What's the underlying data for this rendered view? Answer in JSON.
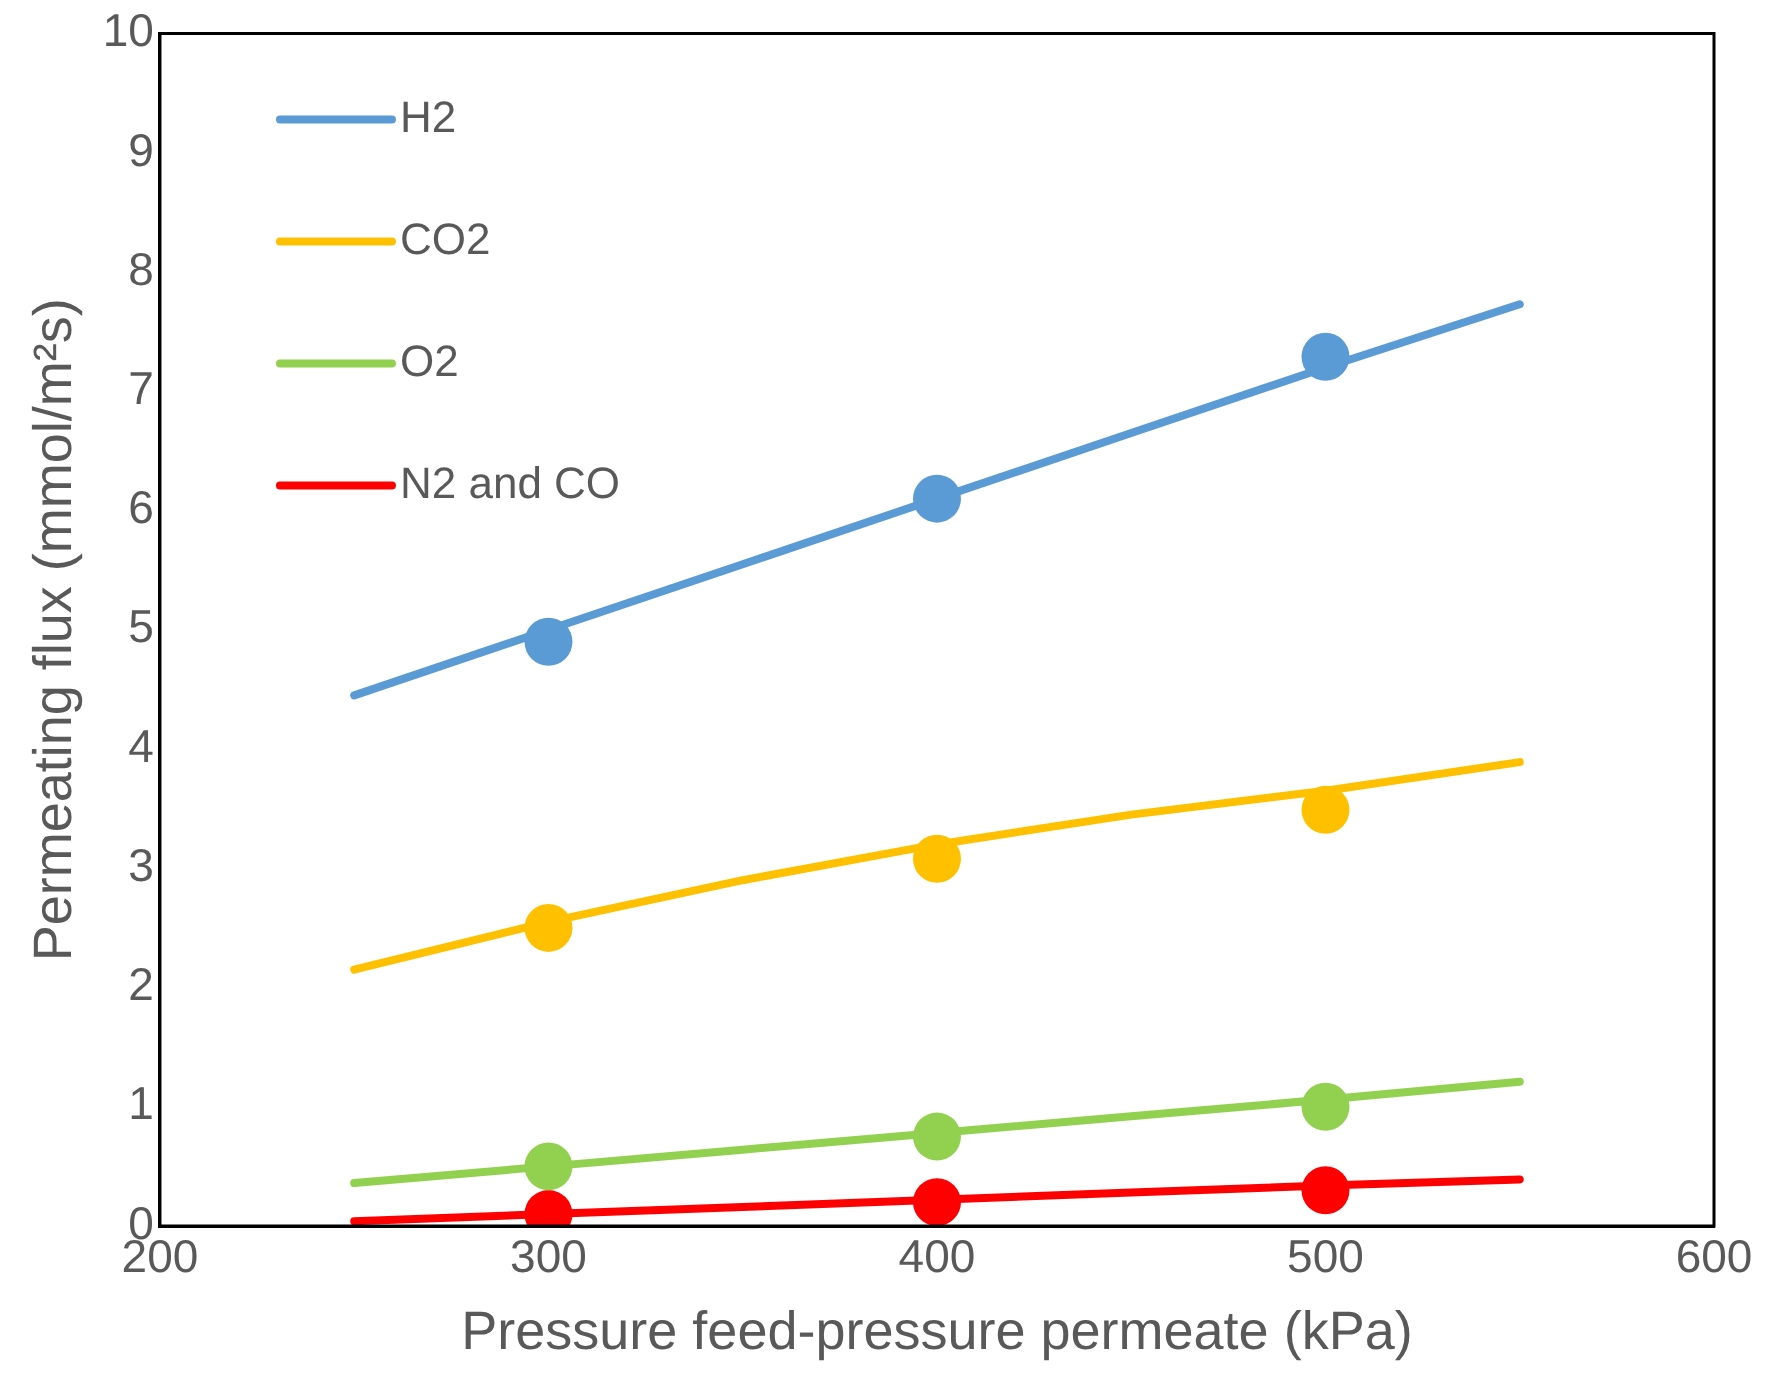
{
  "chart_data": {
    "type": "line",
    "xlabel": "Pressure feed-pressure permeate (kPa)",
    "ylabel": "Permeating flux (mmol/m²s)",
    "xlim": [
      200,
      600
    ],
    "xticks": [
      200,
      300,
      400,
      500,
      600
    ],
    "ylim": [
      0,
      10
    ],
    "yticks": [
      0,
      1,
      2,
      3,
      4,
      5,
      6,
      7,
      8,
      9,
      10
    ],
    "grid": false,
    "legend": "top left",
    "line_style": "solid",
    "series": [
      {
        "name": "H2",
        "type": "line",
        "marker": "none",
        "color": "#5b9bd5",
        "x": [
          250,
          300,
          350,
          400,
          450,
          500,
          550
        ],
        "values": [
          4.45,
          5.0,
          5.55,
          6.1,
          6.65,
          7.2,
          7.73
        ]
      },
      {
        "name": "CO2",
        "type": "line",
        "marker": "none",
        "color": "#ffc000",
        "x": [
          250,
          300,
          350,
          400,
          450,
          500,
          550
        ],
        "values": [
          2.15,
          2.55,
          2.9,
          3.2,
          3.45,
          3.65,
          3.89
        ]
      },
      {
        "name": "O2",
        "type": "line",
        "marker": "none",
        "color": "#92d050",
        "x": [
          250,
          300,
          350,
          400,
          450,
          500,
          550
        ],
        "values": [
          0.36,
          0.5,
          0.64,
          0.78,
          0.92,
          1.06,
          1.21
        ]
      },
      {
        "name": "N2 and CO",
        "type": "line",
        "marker": "none",
        "color": "#ff0000",
        "x": [
          250,
          300,
          350,
          400,
          450,
          500,
          550
        ],
        "values": [
          0.04,
          0.1,
          0.16,
          0.22,
          0.28,
          0.34,
          0.39
        ]
      },
      {
        "type": "scatter",
        "marker": "circle",
        "color": "#5b9bd5",
        "x": [
          300,
          400,
          500
        ],
        "values": [
          4.9,
          6.1,
          7.29
        ]
      },
      {
        "type": "scatter",
        "marker": "circle",
        "color": "#ffc000",
        "x": [
          300,
          400,
          500
        ],
        "values": [
          2.5,
          3.08,
          3.49
        ]
      },
      {
        "type": "scatter",
        "marker": "circle",
        "color": "#92d050",
        "x": [
          300,
          400,
          500
        ],
        "values": [
          0.5,
          0.75,
          1.0
        ]
      },
      {
        "type": "scatter",
        "marker": "circle",
        "color": "#ff0000",
        "x": [
          300,
          400,
          500
        ],
        "values": [
          0.1,
          0.2,
          0.3
        ]
      }
    ]
  }
}
